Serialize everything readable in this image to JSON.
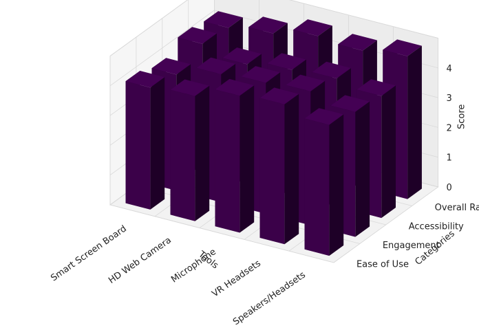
{
  "chart_data": {
    "type": "bar3d",
    "xlabel": "Tools",
    "ylabel": "Categories",
    "zlabel": "Score",
    "x_categories": [
      "Smart Screen Board",
      "HD Web Camera",
      "Microphone",
      "VR Headsets",
      "Speakers/Headsets"
    ],
    "y_categories": [
      "Ease of Use",
      "Engagement",
      "Accessibility",
      "Overall Rating"
    ],
    "z_ticks": [
      "0",
      "1",
      "2",
      "3",
      "4"
    ],
    "zlim": [
      0,
      5
    ],
    "grid": true,
    "values": [
      [
        4.1,
        3.9,
        4.3,
        4.2
      ],
      [
        4.2,
        4.3,
        4.0,
        4.4
      ],
      [
        4.6,
        4.4,
        4.2,
        4.7
      ],
      [
        4.7,
        4.5,
        4.3,
        4.6
      ],
      [
        4.4,
        4.2,
        4.1,
        4.8
      ]
    ],
    "bar_color": "#440154"
  }
}
